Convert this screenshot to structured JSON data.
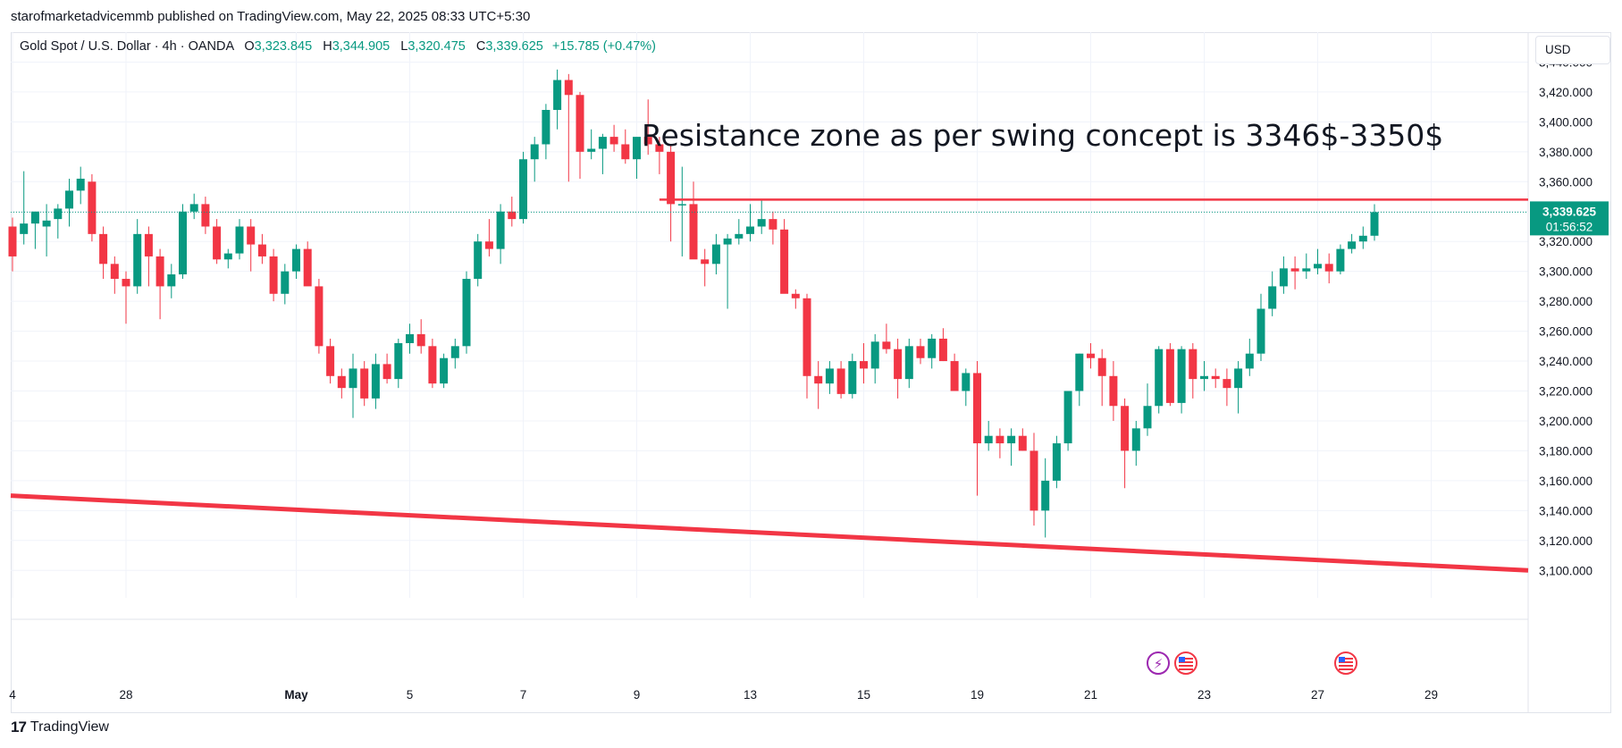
{
  "publisher_line": "starofmarketadvicemmb published on TradingView.com, May 22, 2025 08:33 UTC+5:30",
  "legend": {
    "symbol": "Gold Spot / U.S. Dollar · 4h · OANDA",
    "open_label": "O",
    "open": "3,323.845",
    "high_label": "H",
    "high": "3,344.905",
    "low_label": "L",
    "low": "3,320.475",
    "close_label": "C",
    "close": "3,339.625",
    "change": "+15.785 (+0.47%)"
  },
  "currency_button": "USD",
  "price_label": {
    "price": "3,339.625",
    "countdown": "01:56:52"
  },
  "annotation": "Resistance zone as per swing concept is 3346$-3350$",
  "footer_brand": "TradingView",
  "colors": {
    "up": "#089981",
    "down": "#f23645",
    "annotation_line": "#f23645",
    "grid": "#f0f3fa"
  },
  "event_icons": [
    "lightning-event-icon",
    "us-flag-event-icon",
    "us-flag-event-icon"
  ],
  "chart_data": {
    "type": "candlestick",
    "title": "Gold Spot / U.S. Dollar · 4h · OANDA",
    "ylim": [
      3090,
      3460
    ],
    "y_ticks": [
      3100,
      3120,
      3140,
      3160,
      3180,
      3200,
      3220,
      3240,
      3260,
      3280,
      3300,
      3320,
      3340,
      3360,
      3380,
      3400,
      3420,
      3440
    ],
    "y_tick_labels": [
      "3,100.000",
      "3,120.000",
      "3,140.000",
      "3,160.000",
      "3,180.000",
      "3,200.000",
      "3,220.000",
      "3,240.000",
      "3,260.000",
      "3,280.000",
      "3,300.000",
      "3,320.000",
      "3,340.000",
      "3,360.000",
      "3,380.000",
      "3,400.000",
      "3,420.000",
      "3,440.000"
    ],
    "x_tick_labels": [
      {
        "label": "4",
        "bar": 0
      },
      {
        "label": "28",
        "bar": 10
      },
      {
        "label": "May",
        "bar": 25
      },
      {
        "label": "5",
        "bar": 35
      },
      {
        "label": "7",
        "bar": 45
      },
      {
        "label": "9",
        "bar": 55
      },
      {
        "label": "13",
        "bar": 65
      },
      {
        "label": "15",
        "bar": 75
      },
      {
        "label": "19",
        "bar": 85
      },
      {
        "label": "21",
        "bar": 95
      },
      {
        "label": "23",
        "bar": 105
      },
      {
        "label": "27",
        "bar": 115
      },
      {
        "label": "29",
        "bar": 125
      }
    ],
    "grid": true,
    "candles_ohlc": [
      [
        3330,
        3336,
        3300,
        3310
      ],
      [
        3325,
        3367,
        3318,
        3332
      ],
      [
        3332,
        3338,
        3315,
        3340
      ],
      [
        3330,
        3345,
        3310,
        3334
      ],
      [
        3335,
        3345,
        3322,
        3342
      ],
      [
        3342,
        3362,
        3330,
        3354
      ],
      [
        3354,
        3370,
        3345,
        3362
      ],
      [
        3360,
        3365,
        3320,
        3325
      ],
      [
        3325,
        3330,
        3295,
        3305
      ],
      [
        3305,
        3310,
        3285,
        3295
      ],
      [
        3295,
        3300,
        3265,
        3290
      ],
      [
        3290,
        3335,
        3285,
        3325
      ],
      [
        3325,
        3330,
        3290,
        3310
      ],
      [
        3310,
        3315,
        3268,
        3290
      ],
      [
        3290,
        3305,
        3282,
        3298
      ],
      [
        3298,
        3345,
        3295,
        3340
      ],
      [
        3340,
        3352,
        3335,
        3345
      ],
      [
        3345,
        3350,
        3325,
        3330
      ],
      [
        3330,
        3335,
        3305,
        3308
      ],
      [
        3308,
        3315,
        3302,
        3312
      ],
      [
        3312,
        3335,
        3308,
        3330
      ],
      [
        3330,
        3335,
        3300,
        3318
      ],
      [
        3318,
        3325,
        3305,
        3310
      ],
      [
        3310,
        3315,
        3280,
        3285
      ],
      [
        3285,
        3305,
        3278,
        3300
      ],
      [
        3300,
        3318,
        3295,
        3315
      ],
      [
        3315,
        3320,
        3305,
        3290
      ],
      [
        3290,
        3295,
        3245,
        3250
      ],
      [
        3250,
        3255,
        3225,
        3230
      ],
      [
        3230,
        3235,
        3215,
        3222
      ],
      [
        3222,
        3245,
        3202,
        3235
      ],
      [
        3235,
        3240,
        3210,
        3215
      ],
      [
        3215,
        3245,
        3208,
        3238
      ],
      [
        3238,
        3245,
        3225,
        3228
      ],
      [
        3228,
        3255,
        3222,
        3252
      ],
      [
        3252,
        3265,
        3245,
        3258
      ],
      [
        3258,
        3268,
        3245,
        3250
      ],
      [
        3250,
        3255,
        3222,
        3225
      ],
      [
        3225,
        3245,
        3222,
        3242
      ],
      [
        3242,
        3255,
        3235,
        3250
      ],
      [
        3250,
        3300,
        3245,
        3295
      ],
      [
        3295,
        3325,
        3290,
        3320
      ],
      [
        3320,
        3335,
        3310,
        3315
      ],
      [
        3315,
        3345,
        3305,
        3340
      ],
      [
        3340,
        3350,
        3330,
        3335
      ],
      [
        3335,
        3380,
        3332,
        3375
      ],
      [
        3375,
        3390,
        3360,
        3385
      ],
      [
        3385,
        3412,
        3375,
        3408
      ],
      [
        3408,
        3435,
        3395,
        3428
      ],
      [
        3428,
        3432,
        3360,
        3418
      ],
      [
        3418,
        3420,
        3362,
        3380
      ],
      [
        3380,
        3395,
        3375,
        3382
      ],
      [
        3382,
        3392,
        3365,
        3390
      ],
      [
        3390,
        3398,
        3380,
        3385
      ],
      [
        3385,
        3395,
        3372,
        3375
      ],
      [
        3375,
        3380,
        3362,
        3390
      ],
      [
        3390,
        3415,
        3378,
        3385
      ],
      [
        3385,
        3390,
        3365,
        3380
      ],
      [
        3380,
        3385,
        3320,
        3345
      ],
      [
        3345,
        3370,
        3310,
        3345
      ],
      [
        3345,
        3360,
        3315,
        3308
      ],
      [
        3308,
        3315,
        3290,
        3305
      ],
      [
        3305,
        3325,
        3298,
        3318
      ],
      [
        3318,
        3325,
        3275,
        3322
      ],
      [
        3322,
        3335,
        3318,
        3325
      ],
      [
        3325,
        3345,
        3320,
        3330
      ],
      [
        3330,
        3348,
        3325,
        3335
      ],
      [
        3335,
        3340,
        3318,
        3328
      ],
      [
        3328,
        3335,
        3320,
        3285
      ],
      [
        3285,
        3288,
        3275,
        3282
      ],
      [
        3282,
        3285,
        3215,
        3230
      ],
      [
        3230,
        3240,
        3208,
        3225
      ],
      [
        3225,
        3240,
        3218,
        3235
      ],
      [
        3235,
        3240,
        3215,
        3218
      ],
      [
        3218,
        3245,
        3215,
        3240
      ],
      [
        3240,
        3252,
        3225,
        3235
      ],
      [
        3235,
        3258,
        3225,
        3253
      ],
      [
        3253,
        3265,
        3245,
        3248
      ],
      [
        3248,
        3255,
        3215,
        3228
      ],
      [
        3228,
        3255,
        3222,
        3250
      ],
      [
        3250,
        3255,
        3238,
        3242
      ],
      [
        3242,
        3258,
        3235,
        3255
      ],
      [
        3255,
        3262,
        3240,
        3240
      ],
      [
        3240,
        3245,
        3222,
        3220
      ],
      [
        3220,
        3235,
        3210,
        3232
      ],
      [
        3232,
        3240,
        3150,
        3185
      ],
      [
        3185,
        3200,
        3180,
        3190
      ],
      [
        3190,
        3195,
        3175,
        3185
      ],
      [
        3185,
        3195,
        3170,
        3190
      ],
      [
        3190,
        3195,
        3180,
        3180
      ],
      [
        3180,
        3192,
        3130,
        3140
      ],
      [
        3140,
        3175,
        3122,
        3160
      ],
      [
        3160,
        3190,
        3155,
        3185
      ],
      [
        3185,
        3215,
        3180,
        3220
      ],
      [
        3220,
        3245,
        3210,
        3245
      ],
      [
        3245,
        3252,
        3235,
        3242
      ],
      [
        3242,
        3248,
        3210,
        3230
      ],
      [
        3230,
        3240,
        3200,
        3210
      ],
      [
        3210,
        3215,
        3155,
        3180
      ],
      [
        3180,
        3200,
        3170,
        3195
      ],
      [
        3195,
        3225,
        3190,
        3210
      ],
      [
        3210,
        3250,
        3205,
        3248
      ],
      [
        3248,
        3252,
        3210,
        3212
      ],
      [
        3212,
        3250,
        3205,
        3248
      ],
      [
        3248,
        3252,
        3215,
        3228
      ],
      [
        3228,
        3240,
        3220,
        3230
      ],
      [
        3230,
        3235,
        3222,
        3228
      ],
      [
        3228,
        3235,
        3210,
        3222
      ],
      [
        3222,
        3240,
        3205,
        3235
      ],
      [
        3235,
        3255,
        3230,
        3245
      ],
      [
        3245,
        3285,
        3240,
        3275
      ],
      [
        3275,
        3300,
        3270,
        3290
      ],
      [
        3290,
        3310,
        3285,
        3302
      ],
      [
        3302,
        3310,
        3288,
        3300
      ],
      [
        3300,
        3312,
        3295,
        3302
      ],
      [
        3302,
        3315,
        3298,
        3305
      ],
      [
        3305,
        3312,
        3292,
        3300
      ],
      [
        3300,
        3318,
        3298,
        3315
      ],
      [
        3315,
        3325,
        3312,
        3320
      ],
      [
        3320,
        3330,
        3315,
        3323.845
      ],
      [
        3323.845,
        3344.905,
        3320.475,
        3339.625
      ]
    ],
    "horizontal_line": {
      "price": 3348,
      "from_bar": 57
    },
    "trendline": {
      "from": {
        "bar": 0,
        "price": 3150
      },
      "to": {
        "bar": 136,
        "price": 3100
      }
    }
  }
}
